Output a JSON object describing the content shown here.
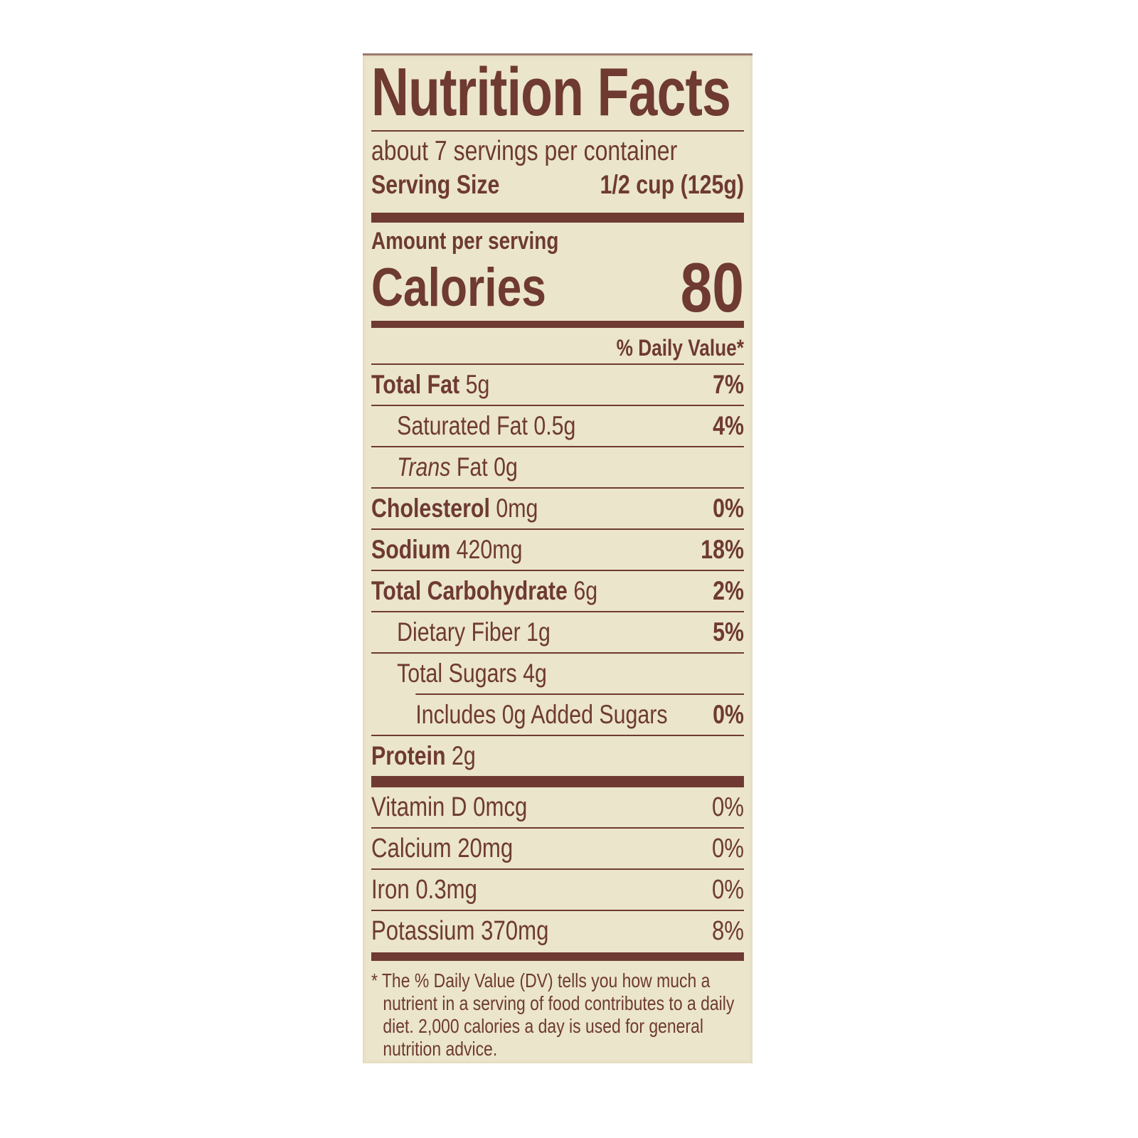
{
  "label": {
    "title": "Nutrition Facts",
    "servings_per_container": "about 7 servings per container",
    "serving_size_label": "Serving Size",
    "serving_size_value": "1/2 cup (125g)",
    "amount_per_serving": "Amount per serving",
    "calories_label": "Calories",
    "calories_value": "80",
    "daily_value_header": "% Daily Value*",
    "nutrients": [
      {
        "name": "Total Fat",
        "amount": "5g",
        "dv": "7%"
      },
      {
        "name": "Saturated Fat",
        "amount": "0.5g",
        "dv": "4%"
      },
      {
        "name_italic": "Trans",
        "name": "Fat",
        "amount": "0g",
        "dv": ""
      },
      {
        "name": "Cholesterol",
        "amount": "0mg",
        "dv": "0%"
      },
      {
        "name": "Sodium",
        "amount": "420mg",
        "dv": "18%"
      },
      {
        "name": "Total Carbohydrate",
        "amount": "6g",
        "dv": "2%"
      },
      {
        "name": "Dietary Fiber",
        "amount": "1g",
        "dv": "5%"
      },
      {
        "name": "Total Sugars",
        "amount": "4g",
        "dv": ""
      },
      {
        "name": "Includes 0g Added Sugars",
        "dv": "0%"
      },
      {
        "name": "Protein",
        "amount": "2g",
        "dv": ""
      }
    ],
    "vitamins": [
      {
        "text": "Vitamin D 0mcg",
        "dv": "0%"
      },
      {
        "text": "Calcium 20mg",
        "dv": "0%"
      },
      {
        "text": "Iron 0.3mg",
        "dv": "0%"
      },
      {
        "text": "Potassium 370mg",
        "dv": "8%"
      }
    ],
    "footnote": "* The % Daily Value (DV) tells you how much a nutrient in a serving of food contributes to a daily diet. 2,000 calories a day is used for general nutrition advice."
  },
  "colors": {
    "ink": "#6e3a32",
    "paper": "#ebe5cb"
  }
}
